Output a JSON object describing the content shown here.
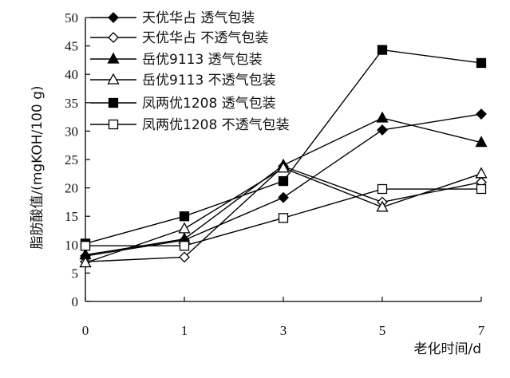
{
  "chart_data": {
    "type": "line",
    "xlabel": "老化时间/d",
    "ylabel": "脂肪酸值/(mgKOH/100 g)",
    "x": [
      "0",
      "1",
      "3",
      "5",
      "7"
    ],
    "ylim": [
      0,
      50
    ],
    "yticks": [
      0,
      5,
      10,
      15,
      20,
      25,
      30,
      35,
      40,
      45,
      50
    ],
    "legend_position": "top-left",
    "grid": false,
    "series": [
      {
        "name": "天优华占 透气包装",
        "marker": "filled-diamond",
        "values": [
          8.0,
          10.8,
          18.3,
          30.2,
          33.0
        ]
      },
      {
        "name": "天优华占 不透气包装",
        "marker": "open-diamond",
        "values": [
          7.0,
          7.8,
          23.8,
          17.5,
          21.0
        ]
      },
      {
        "name": "岳优9113 透气包装",
        "marker": "filled-triangle",
        "values": [
          8.2,
          11.0,
          24.0,
          32.3,
          28.0
        ]
      },
      {
        "name": "岳优9113 不透气包装",
        "marker": "open-triangle",
        "values": [
          6.8,
          12.8,
          23.5,
          16.6,
          22.5
        ]
      },
      {
        "name": "凤两优1208 透气包装",
        "marker": "filled-square",
        "values": [
          10.2,
          15.0,
          21.2,
          44.3,
          42.0
        ]
      },
      {
        "name": "凤两优1208 不透气包装",
        "marker": "open-square",
        "values": [
          9.8,
          9.8,
          14.7,
          19.8,
          19.8
        ]
      }
    ]
  }
}
